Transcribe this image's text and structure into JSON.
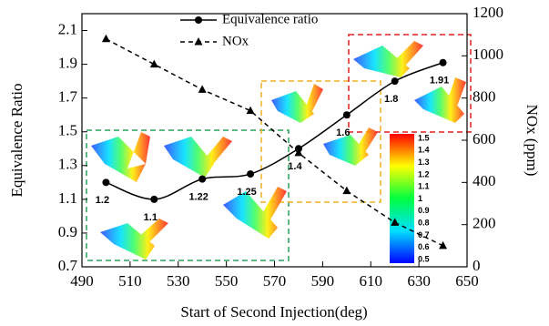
{
  "chart_data": {
    "type": "line",
    "x_label": "Start of  Second Injection(deg)",
    "y_label": "Equivalence Ratio",
    "y2_label": "NOx (ppm)",
    "x": [
      500,
      520,
      540,
      560,
      580,
      600,
      620,
      640
    ],
    "series": [
      {
        "name": "Equivalence ratio",
        "color": "#000000",
        "marker": "circle",
        "dash": false,
        "values": [
          1.2,
          1.1,
          1.22,
          1.25,
          1.4,
          1.6,
          1.8,
          1.91
        ]
      },
      {
        "name": "NOx",
        "color": "#000000",
        "marker": "triangle",
        "dash": true,
        "axis": "y2",
        "values": [
          1080,
          960,
          840,
          740,
          540,
          360,
          210,
          100
        ]
      }
    ],
    "xlim": [
      490,
      650
    ],
    "xticks": [
      490,
      510,
      530,
      550,
      570,
      590,
      610,
      630,
      650
    ],
    "ylim": [
      0.7,
      2.2
    ],
    "yticks": [
      0.7,
      0.9,
      1.1,
      1.3,
      1.5,
      1.7,
      1.9,
      2.1
    ],
    "y2lim": [
      0,
      1200
    ],
    "y2ticks": [
      0,
      200,
      400,
      600,
      800,
      1000,
      1200
    ],
    "legend": "top",
    "colorbar": [
      1.5,
      1.4,
      1.3,
      1.2,
      1.1,
      1,
      0.9,
      0.8,
      0.7,
      0.6,
      0.5
    ]
  }
}
